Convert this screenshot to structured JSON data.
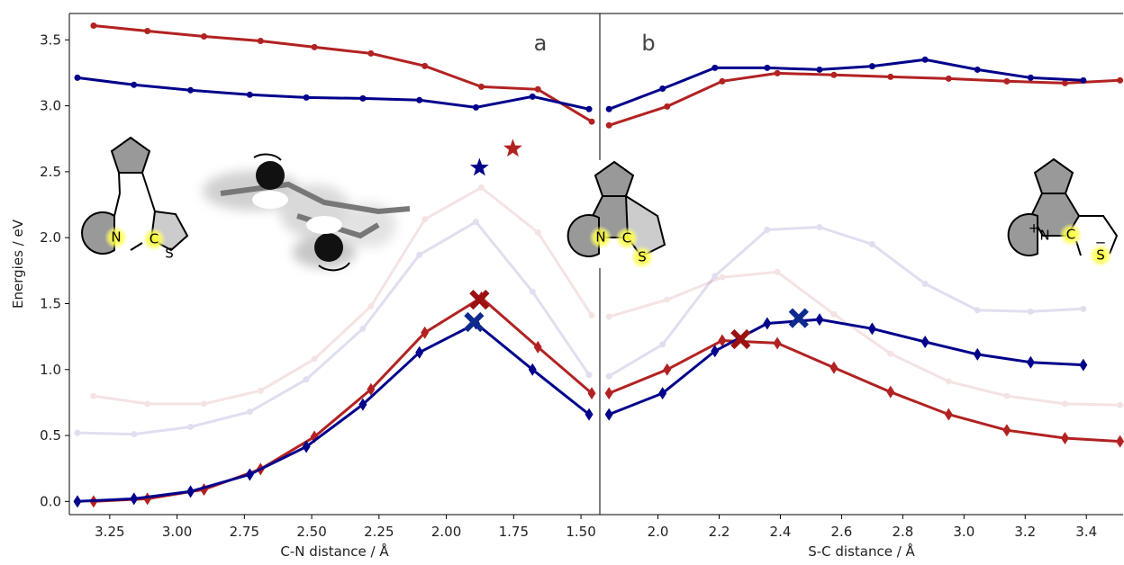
{
  "chart_data": [
    {
      "type": "line",
      "annotation": "a",
      "xlabel": "C-N distance / Å",
      "ylabel": "Energies / eV",
      "xlim": [
        3.4,
        1.43
      ],
      "ylim": [
        -0.1,
        3.7
      ],
      "xticks": [
        3.25,
        {
          "value": 3,
          "label": "3.00"
        },
        2.75,
        {
          "value": 2.5,
          "label": "2.50"
        },
        2.25,
        {
          "value": 2,
          "label": "2.00"
        },
        1.75,
        {
          "value": 1.5,
          "label": "1.50"
        }
      ],
      "yticks": [
        {
          "value": 0,
          "label": "0.0"
        },
        0.5,
        {
          "value": 1,
          "label": "1.0"
        },
        1.5,
        {
          "value": 2,
          "label": "2.0"
        },
        2.5,
        {
          "value": 3,
          "label": "3.0"
        },
        3.5
      ],
      "series": [
        {
          "color": "#b22222",
          "marker": "dot",
          "opacity": 0.12,
          "x": [
            3.31,
            3.11,
            2.9,
            2.69,
            2.49,
            2.28,
            2.08,
            1.87,
            1.66,
            1.46
          ],
          "values": [
            0.8,
            0.74,
            0.74,
            0.84,
            1.08,
            1.48,
            2.14,
            2.38,
            2.04,
            1.41
          ]
        },
        {
          "color": "#00008b",
          "marker": "dot",
          "opacity": 0.12,
          "x": [
            3.37,
            3.16,
            2.95,
            2.73,
            2.52,
            2.31,
            2.1,
            1.89,
            1.68,
            1.47
          ],
          "values": [
            0.52,
            0.51,
            0.565,
            0.68,
            0.925,
            1.31,
            1.87,
            2.12,
            1.59,
            0.96
          ]
        },
        {
          "color": "#b22222",
          "marker": "dot",
          "opacity": 1,
          "x": [
            3.31,
            3.11,
            2.9,
            2.69,
            2.49,
            2.28,
            2.08,
            1.87,
            1.66,
            1.46
          ],
          "values": [
            3.608,
            3.567,
            3.526,
            3.492,
            3.445,
            3.397,
            3.302,
            3.145,
            3.125,
            2.88
          ]
        },
        {
          "color": "#00008b",
          "marker": "dot",
          "opacity": 1,
          "x": [
            3.37,
            3.16,
            2.95,
            2.73,
            2.52,
            2.31,
            2.1,
            1.89,
            1.68,
            1.47
          ],
          "values": [
            3.213,
            3.159,
            3.118,
            3.084,
            3.063,
            3.056,
            3.043,
            2.988,
            3.07,
            2.975
          ]
        },
        {
          "color": "#b22222",
          "marker": "diamond",
          "opacity": 1,
          "x": [
            3.31,
            3.11,
            2.9,
            2.69,
            2.49,
            2.28,
            2.08,
            1.87,
            1.66,
            1.46
          ],
          "values": [
            0.0,
            0.02,
            0.09,
            0.245,
            0.49,
            0.85,
            1.28,
            1.545,
            1.17,
            0.82
          ]
        },
        {
          "color": "#00008b",
          "marker": "diamond",
          "opacity": 1,
          "x": [
            3.37,
            3.16,
            2.95,
            2.73,
            2.52,
            2.31,
            2.1,
            1.89,
            1.68,
            1.47
          ],
          "values": [
            0.0,
            0.02,
            0.075,
            0.204,
            0.415,
            0.735,
            1.13,
            1.35,
            1.0,
            0.66
          ]
        },
        {
          "color": "#00008b",
          "marker": "star",
          "opacity": 1,
          "x": [
            1.877
          ],
          "values": [
            2.53
          ]
        },
        {
          "color": "#b22222",
          "marker": "star",
          "opacity": 1,
          "x": [
            1.753
          ],
          "values": [
            2.675
          ]
        },
        {
          "color": "#9b1010",
          "marker": "cross",
          "opacity": 1,
          "x": [
            1.877
          ],
          "values": [
            1.53
          ]
        },
        {
          "color": "#0d2a8c",
          "marker": "cross",
          "opacity": 1,
          "x": [
            1.897
          ],
          "values": [
            1.36
          ]
        }
      ]
    },
    {
      "type": "line",
      "annotation": "b",
      "xlabel": "S-C distance / Å",
      "xlim": [
        1.81,
        3.52
      ],
      "ylim": [
        -0.1,
        3.7
      ],
      "xticks": [
        {
          "value": 2,
          "label": "2.0"
        },
        2.2,
        2.4,
        2.6,
        2.8,
        {
          "value": 3,
          "label": "3.0"
        },
        3.2,
        3.4
      ],
      "series": [
        {
          "color": "#b22222",
          "marker": "dot",
          "opacity": 0.12,
          "x": [
            1.84,
            2.03,
            2.21,
            2.39,
            2.575,
            2.76,
            2.95,
            3.14,
            3.33,
            3.51
          ],
          "values": [
            1.4,
            1.53,
            1.7,
            1.74,
            1.42,
            1.12,
            0.91,
            0.8,
            0.74,
            0.73
          ]
        },
        {
          "color": "#00008b",
          "marker": "dot",
          "opacity": 0.12,
          "x": [
            1.84,
            2.015,
            2.186,
            2.357,
            2.528,
            2.7,
            2.873,
            3.044,
            3.218,
            3.39
          ],
          "values": [
            0.95,
            1.19,
            1.71,
            2.06,
            2.08,
            1.95,
            1.65,
            1.45,
            1.44,
            1.46
          ]
        },
        {
          "color": "#b22222",
          "marker": "dot",
          "opacity": 1,
          "x": [
            1.84,
            2.03,
            2.21,
            2.39,
            2.575,
            2.76,
            2.95,
            3.14,
            3.33,
            3.51
          ],
          "values": [
            2.852,
            2.995,
            3.186,
            3.247,
            3.234,
            3.22,
            3.206,
            3.186,
            3.172,
            3.193
          ]
        },
        {
          "color": "#00008b",
          "marker": "dot",
          "opacity": 1,
          "x": [
            1.84,
            2.015,
            2.186,
            2.357,
            2.528,
            2.7,
            2.873,
            3.044,
            3.218,
            3.39
          ],
          "values": [
            2.975,
            3.13,
            3.288,
            3.288,
            3.274,
            3.3,
            3.35,
            3.274,
            3.213,
            3.193
          ]
        },
        {
          "color": "#b22222",
          "marker": "diamond",
          "opacity": 1,
          "x": [
            1.84,
            2.03,
            2.21,
            2.39,
            2.575,
            2.76,
            2.95,
            3.14,
            3.33,
            3.51
          ],
          "values": [
            0.82,
            1.0,
            1.22,
            1.2,
            1.015,
            0.83,
            0.66,
            0.54,
            0.48,
            0.455
          ]
        },
        {
          "color": "#00008b",
          "marker": "diamond",
          "opacity": 1,
          "x": [
            1.84,
            2.015,
            2.186,
            2.357,
            2.528,
            2.7,
            2.873,
            3.044,
            3.218,
            3.39
          ],
          "values": [
            0.66,
            0.82,
            1.14,
            1.35,
            1.38,
            1.31,
            1.21,
            1.115,
            1.055,
            1.035
          ]
        },
        {
          "color": "#9b1010",
          "marker": "cross",
          "opacity": 1,
          "x": [
            2.27
          ],
          "values": [
            1.23
          ]
        },
        {
          "color": "#0d2a8c",
          "marker": "cross",
          "opacity": 1,
          "x": [
            2.46
          ],
          "values": [
            1.39
          ]
        }
      ]
    }
  ],
  "molecules": [
    {
      "labels": [
        "N",
        "C",
        "S"
      ]
    },
    {
      "labels": [
        "N",
        "C",
        "S"
      ]
    },
    {
      "labels": [
        "+",
        "N",
        "C",
        "−",
        "S"
      ]
    }
  ]
}
